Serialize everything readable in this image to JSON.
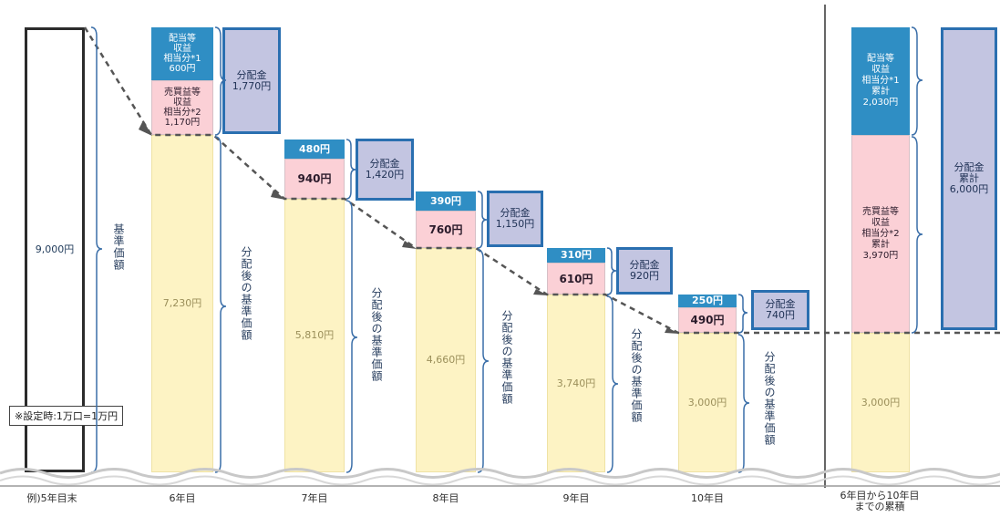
{
  "initial": {
    "value": "9,000円",
    "bracket_label": "基準価額",
    "year": "例)5年目末"
  },
  "note": "※設定時:1万口=1万円",
  "years": [
    {
      "label": "6年目",
      "nav": "7,230円",
      "sale": "売買益等\n収益\n相当分*2\n1,170円",
      "div_income": "配当等\n収益\n相当分*1\n600円",
      "payout": "分配金\n1,770円",
      "after": "分配後の基準価額"
    },
    {
      "label": "7年目",
      "nav": "5,810円",
      "sale": "940円",
      "div_income": "480円",
      "payout": "分配金\n1,420円",
      "after": "分配後の基準価額"
    },
    {
      "label": "8年目",
      "nav": "4,660円",
      "sale": "760円",
      "div_income": "390円",
      "payout": "分配金\n1,150円",
      "after": "分配後の基準価額"
    },
    {
      "label": "9年目",
      "nav": "3,740円",
      "sale": "610円",
      "div_income": "310円",
      "payout": "分配金\n920円",
      "after": "分配後の基準価額"
    },
    {
      "label": "10年目",
      "nav": "3,000円",
      "sale": "490円",
      "div_income": "250円",
      "payout": "分配金\n740円",
      "after": "分配後の基準価額"
    }
  ],
  "total": {
    "label": "6年目から10年目\nまでの累積",
    "nav": "3,000円",
    "div_income": "配当等\n収益\n相当分*1\n累計\n2,030円",
    "sale": "売買益等\n収益\n相当分*2\n累計\n3,970円",
    "payout": "分配金\n累計\n6,000円"
  },
  "colors": {
    "yellow": "#fdf3c4",
    "pink": "#fbd0d6",
    "blue": "#2f8ec4",
    "lavender": "#c3c5e1",
    "border": "#2a6fb0"
  }
}
